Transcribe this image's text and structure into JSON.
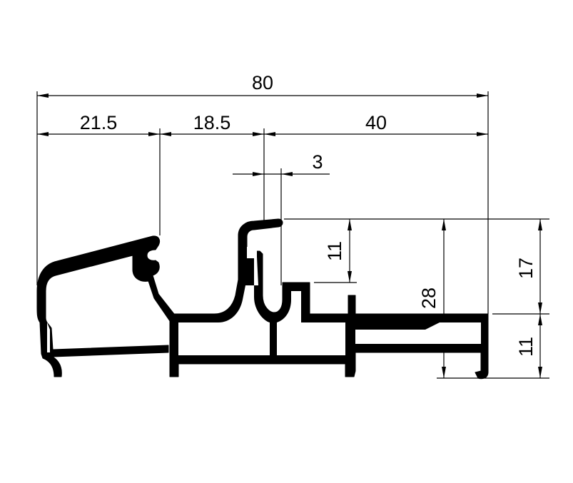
{
  "drawing": {
    "dimensions": {
      "overall_width": "80",
      "seg_left": "21.5",
      "seg_middle": "18.5",
      "seg_right": "40",
      "lip": "3",
      "height_upper": "11",
      "height_total": "28",
      "height_right_upper": "17",
      "height_right_lower": "11"
    }
  }
}
